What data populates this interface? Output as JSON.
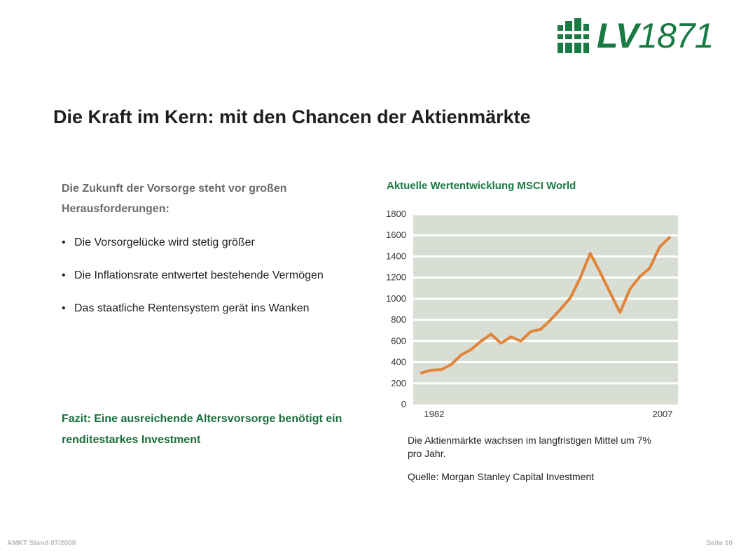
{
  "logo": {
    "brand": "LV",
    "year": "1871"
  },
  "title": "Die Kraft im Kern: mit den Chancen der Aktienmärkte",
  "intro": "Die Zukunft der Vorsorge steht vor großen Herausforderungen:",
  "bullets": [
    "Die Vorsorgelücke wird stetig größer",
    "Die Inflationsrate entwertet bestehende Vermögen",
    "Das staatliche Rentensystem gerät ins Wanken"
  ],
  "bullet_glyph": "•",
  "fazit": "Fazit: Eine ausreichende Altersvorsorge benötigt ein renditestarkes Investment",
  "caption": "Die Aktienmärkte wachsen im langfristigen Mittel um 7% pro Jahr.",
  "source": "Quelle: Morgan Stanley Capital Investment",
  "footer": {
    "left": "AMKT Stand 07/2008",
    "right": "Seite 10"
  },
  "colors": {
    "brand_green": "#1a7a44",
    "line_orange": "#e0843a",
    "plot_bg": "#d8ded4"
  },
  "chart_data": {
    "type": "line",
    "title": "Aktuelle Wertentwicklung MSCI World",
    "xlabel": "",
    "ylabel": "",
    "ylim": [
      0,
      1800
    ],
    "yticks": [
      0,
      200,
      400,
      600,
      800,
      1000,
      1200,
      1400,
      1600,
      1800
    ],
    "xtick_labels": [
      "1982",
      "2007"
    ],
    "grid": true,
    "series": [
      {
        "values": [
          300,
          325,
          330,
          380,
          470,
          520,
          600,
          665,
          580,
          640,
          600,
          690,
          710,
          800,
          900,
          1010,
          1200,
          1430,
          1250,
          1060,
          870,
          1090,
          1210,
          1290,
          1490,
          1580
        ]
      }
    ]
  }
}
